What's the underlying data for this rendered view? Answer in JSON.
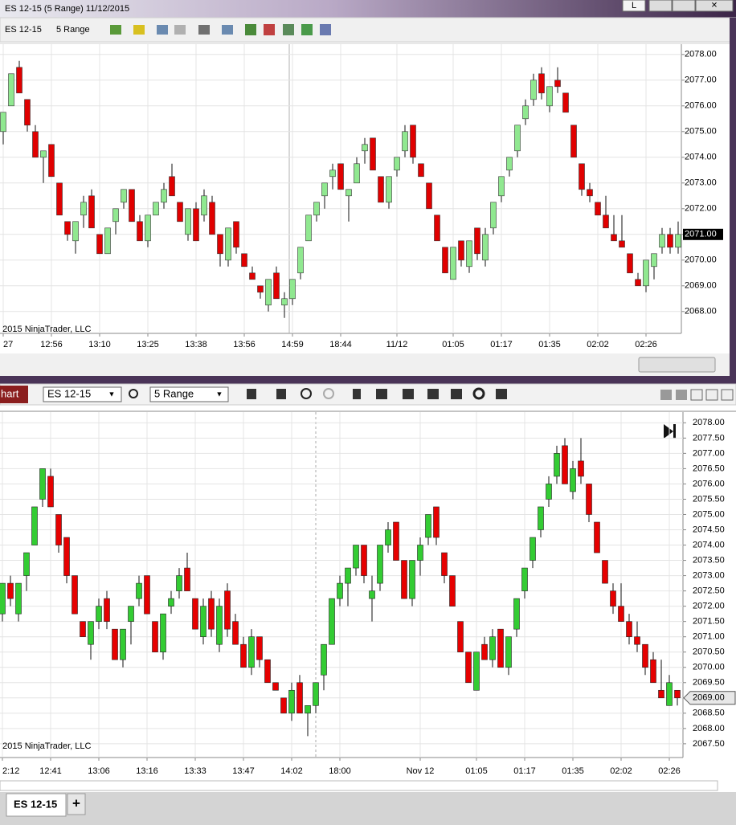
{
  "window": {
    "title": "ES 12-15 (5 Range)  11/12/2015",
    "button": "L"
  },
  "toolbar": {
    "instrument": "ES 12-15",
    "period": "5 Range"
  },
  "bottom_toolbar": {
    "tab": "hart",
    "instrument": "ES 12-15",
    "period": "5 Range"
  },
  "tabs": {
    "active": "ES 12-15",
    "add": "+"
  },
  "chart_data": [
    {
      "type": "candlestick",
      "watermark": "© 2015 NinjaTrader, LLC",
      "up_color": "#90e890",
      "down_color": "#e00000",
      "grid": true,
      "open": [
        2075,
        2076,
        2077.5,
        2076.25,
        2075,
        2074,
        2074.5,
        2073,
        2071.5,
        2070.75,
        2071.75,
        2072.5,
        2071,
        2070.25,
        2071.5,
        2072.25,
        2072.75,
        2071.5,
        2070.75,
        2071.75,
        2072.25,
        2073.25,
        2072.25,
        2071,
        2072,
        2071.75,
        2072.25,
        2071,
        2070,
        2071.5,
        2070.25,
        2069.5,
        2069,
        2068.25,
        2069.5,
        2068.25,
        2068.5,
        2069.5,
        2070.75,
        2071.75,
        2072.5,
        2073.25,
        2073.75,
        2072.5,
        2073,
        2074.25,
        2074.75,
        2073.25,
        2072.25,
        2073.5,
        2074.25,
        2075.25,
        2073.75,
        2073,
        2071.75,
        2070.5,
        2069.25,
        2070.75,
        2069.75,
        2071.25,
        2070,
        2071.25,
        2072.5,
        2073.5,
        2074.25,
        2075.5,
        2076.25,
        2077.25,
        2076,
        2077,
        2076.5,
        2075.25,
        2073.75,
        2072.75,
        2072.25,
        2071.75,
        2071,
        2070.75,
        2070.25,
        2069.25,
        2069,
        2069.75,
        2070.5,
        2071,
        2070.5
      ],
      "high": [
        2075.75,
        2077.25,
        2077.75,
        2076.25,
        2075.25,
        2074.25,
        2074.5,
        2073,
        2071.5,
        2071.5,
        2072.5,
        2072.75,
        2071,
        2071.25,
        2072,
        2072.75,
        2072.75,
        2071.75,
        2071.75,
        2072.25,
        2073,
        2073.75,
        2072.25,
        2072,
        2072.25,
        2072.75,
        2072.5,
        2071,
        2071.25,
        2071.5,
        2070.25,
        2069.75,
        2069,
        2069.25,
        2069.75,
        2068.75,
        2069.25,
        2070.5,
        2071.75,
        2072.25,
        2073,
        2073.75,
        2073.75,
        2072.75,
        2074,
        2074.75,
        2074.75,
        2073.25,
        2073.25,
        2074,
        2075.25,
        2075.25,
        2073.75,
        2073,
        2071.75,
        2070.5,
        2070.5,
        2070.75,
        2070.75,
        2071.25,
        2071.25,
        2072.25,
        2073.25,
        2074,
        2075.25,
        2076.25,
        2077.25,
        2077.5,
        2076.75,
        2077.5,
        2076.5,
        2075.25,
        2073.75,
        2073,
        2072.25,
        2072.5,
        2071.75,
        2071.75,
        2070.25,
        2069.5,
        2070,
        2070.25,
        2071.25,
        2071.25,
        2071.5
      ],
      "low": [
        2074.5,
        2076,
        2076.5,
        2075,
        2074,
        2073,
        2073.25,
        2071.75,
        2070.75,
        2070.25,
        2071.25,
        2071.25,
        2070.25,
        2070.25,
        2071,
        2072,
        2071.5,
        2070.75,
        2070.5,
        2071.75,
        2072,
        2072.5,
        2071.5,
        2070.75,
        2070.75,
        2071.5,
        2071,
        2069.75,
        2069.75,
        2070.25,
        2069.75,
        2069.25,
        2068.5,
        2068,
        2068.5,
        2067.75,
        2068.25,
        2069.25,
        2070.75,
        2071.5,
        2072,
        2072.75,
        2072.75,
        2071.5,
        2073,
        2073.75,
        2073.5,
        2072.25,
        2072,
        2073.25,
        2074,
        2073.75,
        2073.25,
        2072,
        2070.75,
        2069.5,
        2069.25,
        2069.75,
        2069.5,
        2070,
        2069.75,
        2071,
        2072.25,
        2073.25,
        2074,
        2075.25,
        2076,
        2076.25,
        2075.75,
        2076.5,
        2075.75,
        2074,
        2072.5,
        2072.25,
        2071.75,
        2071.25,
        2070.75,
        2070.5,
        2069.5,
        2069,
        2068.75,
        2069.25,
        2070.25,
        2070.25,
        2070.25
      ],
      "close": [
        2075.75,
        2077.25,
        2076.5,
        2075.25,
        2074,
        2074.25,
        2073.25,
        2071.75,
        2071,
        2071.5,
        2072.25,
        2071.25,
        2070.25,
        2071.25,
        2072,
        2072.75,
        2071.5,
        2070.75,
        2071.75,
        2072.25,
        2072.75,
        2072.5,
        2071.5,
        2072,
        2070.75,
        2072.5,
        2071,
        2070.25,
        2071.25,
        2070.5,
        2069.75,
        2069.25,
        2068.75,
        2069.25,
        2068.5,
        2068.5,
        2069.25,
        2070.5,
        2071.75,
        2072.25,
        2073,
        2073.5,
        2072.75,
        2072.75,
        2073.75,
        2074.5,
        2073.5,
        2072.25,
        2073.25,
        2074,
        2075,
        2074,
        2073.25,
        2072,
        2070.75,
        2069.5,
        2070.5,
        2070,
        2070.75,
        2070.25,
        2071,
        2072.25,
        2073.25,
        2074,
        2075.25,
        2076,
        2077,
        2076.5,
        2076.75,
        2076.75,
        2075.75,
        2074,
        2072.75,
        2072.5,
        2071.75,
        2071.25,
        2070.75,
        2070.5,
        2069.5,
        2069,
        2070,
        2070.25,
        2071,
        2070.5,
        2071
      ],
      "x_labels": [
        {
          "index": 0,
          "label": "27"
        },
        {
          "index": 6,
          "label": "12:56"
        },
        {
          "index": 12,
          "label": "13:10"
        },
        {
          "index": 18,
          "label": "13:25"
        },
        {
          "index": 24,
          "label": "13:38"
        },
        {
          "index": 30,
          "label": "13:56"
        },
        {
          "index": 36,
          "label": "14:59"
        },
        {
          "index": 42,
          "label": "18:44"
        },
        {
          "index": 49,
          "label": "11/12"
        },
        {
          "index": 56,
          "label": "01:05"
        },
        {
          "index": 62,
          "label": "01:17"
        },
        {
          "index": 68,
          "label": "01:35"
        },
        {
          "index": 74,
          "label": "02:02"
        },
        {
          "index": 80,
          "label": "02:26"
        }
      ],
      "ylim": [
        2067.15,
        2078.4
      ],
      "yticks": [
        {
          "value": 2068,
          "label": "2068.00"
        },
        {
          "value": 2069,
          "label": "2069.00"
        },
        {
          "value": 2070,
          "label": "2070.00"
        },
        {
          "value": 2071,
          "label": "2071.00"
        },
        {
          "value": 2072,
          "label": "2072.00"
        },
        {
          "value": 2073,
          "label": "2073.00"
        },
        {
          "value": 2074,
          "label": "2074.00"
        },
        {
          "value": 2075,
          "label": "2075.00"
        },
        {
          "value": 2076,
          "label": "2076.00"
        },
        {
          "value": 2077,
          "label": "2077.00"
        },
        {
          "value": 2078,
          "label": "2078.00"
        }
      ],
      "last_price": {
        "value": 2071,
        "label": "2071.00"
      }
    },
    {
      "type": "candlestick",
      "watermark": "© 2015 NinjaTrader, LLC",
      "up_color": "#33cc33",
      "down_color": "#e60000",
      "grid": true,
      "open": [
        2071.75,
        2072.75,
        2071.75,
        2073,
        2074,
        2075.5,
        2076.25,
        2075,
        2074.25,
        2073,
        2071.5,
        2070.75,
        2071.5,
        2072.25,
        2071.25,
        2070.25,
        2071.5,
        2072.25,
        2073,
        2071.5,
        2070.5,
        2072,
        2072.5,
        2073.25,
        2072.25,
        2071,
        2072.25,
        2070.75,
        2072.5,
        2071.5,
        2070.75,
        2070,
        2071,
        2070.25,
        2069.5,
        2069,
        2068.5,
        2069.5,
        2068.5,
        2068.75,
        2069.75,
        2070.75,
        2072.25,
        2072.75,
        2073.25,
        2074,
        2072.25,
        2072.75,
        2074,
        2074.75,
        2073.5,
        2072.25,
        2073.5,
        2074.25,
        2075.25,
        2073.75,
        2073,
        2071.5,
        2070.5,
        2069.25,
        2070.75,
        2070.25,
        2071.25,
        2070,
        2071.25,
        2072.5,
        2073.5,
        2074.5,
        2075.5,
        2076.25,
        2077.25,
        2075.75,
        2076.75,
        2076,
        2074.75,
        2073.5,
        2072.5,
        2072,
        2071.5,
        2071,
        2070.75,
        2070.25,
        2069.25,
        2068.75,
        2069.25
      ],
      "high": [
        2072.75,
        2073,
        2072.75,
        2073.75,
        2075.25,
        2076.5,
        2076.5,
        2075,
        2074.25,
        2073,
        2071.5,
        2071.5,
        2072.25,
        2072.5,
        2071.25,
        2071.25,
        2072,
        2073,
        2073,
        2071.5,
        2071.75,
        2072.5,
        2073.25,
        2073.75,
        2072.25,
        2072.25,
        2072.5,
        2072.25,
        2072.75,
        2071.75,
        2071,
        2071.25,
        2071,
        2070.25,
        2069.5,
        2069,
        2069.5,
        2069.75,
        2068.75,
        2069.5,
        2070.75,
        2072.25,
        2073,
        2073.25,
        2074,
        2074,
        2073,
        2074,
        2074.75,
        2074.75,
        2073.5,
        2073.5,
        2074.25,
        2075,
        2075.25,
        2073.75,
        2073,
        2071.5,
        2070.5,
        2070.5,
        2071,
        2071.25,
        2071.25,
        2071,
        2072.25,
        2073.25,
        2074.25,
        2075.25,
        2076.25,
        2077.25,
        2077.5,
        2076.75,
        2077.5,
        2076,
        2074.75,
        2073.5,
        2072.75,
        2072.75,
        2071.75,
        2071.5,
        2070.75,
        2070.5,
        2070.25,
        2069.75,
        2069.25
      ],
      "low": [
        2071.5,
        2072,
        2071.5,
        2072.5,
        2074,
        2075.25,
        2075.25,
        2073.75,
        2072.75,
        2071.75,
        2071,
        2070.25,
        2071.25,
        2071.25,
        2070.25,
        2070,
        2070.75,
        2072,
        2071.75,
        2070.5,
        2070.25,
        2071.75,
        2072.25,
        2072.5,
        2071.25,
        2070.75,
        2071,
        2070.5,
        2071,
        2070.75,
        2070,
        2069.75,
        2070,
        2069.5,
        2069.25,
        2068.5,
        2068.25,
        2068.5,
        2067.75,
        2068.5,
        2069.25,
        2070.75,
        2072,
        2072,
        2073,
        2072.75,
        2071.5,
        2072.5,
        2073.75,
        2073.5,
        2072.25,
        2072,
        2073,
        2074,
        2074,
        2072.75,
        2072,
        2070.5,
        2069.5,
        2069.25,
        2070.25,
        2070,
        2070,
        2069.75,
        2071,
        2072.25,
        2073.25,
        2074.25,
        2075.25,
        2076,
        2076,
        2075.5,
        2076,
        2074.75,
        2073.75,
        2072.75,
        2071.75,
        2071.5,
        2070.75,
        2070.5,
        2069.75,
        2069.5,
        2069,
        2068.75,
        2068.75
      ],
      "close": [
        2072.75,
        2072.25,
        2072.75,
        2073.75,
        2075.25,
        2076.5,
        2075.25,
        2074,
        2073,
        2071.75,
        2071,
        2071.5,
        2072,
        2071.5,
        2070.25,
        2071.25,
        2072,
        2072.75,
        2071.75,
        2070.5,
        2071.75,
        2072.25,
        2073,
        2072.5,
        2071.25,
        2072,
        2071.25,
        2072,
        2071.25,
        2070.75,
        2070,
        2071,
        2070.25,
        2069.5,
        2069.25,
        2068.5,
        2069.25,
        2068.5,
        2068.75,
        2069.5,
        2070.75,
        2072.25,
        2072.75,
        2073.25,
        2074,
        2073,
        2072.5,
        2074,
        2074.5,
        2073.5,
        2072.25,
        2073.5,
        2074,
        2075,
        2074.25,
        2073,
        2072,
        2070.5,
        2069.5,
        2070.5,
        2070.25,
        2071,
        2070,
        2071,
        2072.25,
        2073.25,
        2074.25,
        2075.25,
        2076,
        2077,
        2076,
        2076.5,
        2076.25,
        2075,
        2073.75,
        2072.75,
        2072,
        2071.5,
        2071,
        2070.75,
        2070,
        2069.5,
        2069,
        2069.5,
        2069
      ],
      "x_labels": [
        {
          "index": 0,
          "label": "2:12"
        },
        {
          "index": 6,
          "label": "12:41"
        },
        {
          "index": 12,
          "label": "13:06"
        },
        {
          "index": 18,
          "label": "13:16"
        },
        {
          "index": 24,
          "label": "13:33"
        },
        {
          "index": 30,
          "label": "13:47"
        },
        {
          "index": 36,
          "label": "14:02"
        },
        {
          "index": 42,
          "label": "18:00"
        },
        {
          "index": 52,
          "label": "Nov 12"
        },
        {
          "index": 59,
          "label": "01:05"
        },
        {
          "index": 65,
          "label": "01:17"
        },
        {
          "index": 71,
          "label": "01:35"
        },
        {
          "index": 77,
          "label": "02:02"
        },
        {
          "index": 83,
          "label": "02:26"
        }
      ],
      "ylim": [
        2067.05,
        2078.35
      ],
      "yticks": [
        {
          "value": 2067.5,
          "label": "2067.50"
        },
        {
          "value": 2068,
          "label": "2068.00"
        },
        {
          "value": 2068.5,
          "label": "2068.50"
        },
        {
          "value": 2069,
          "label": "2069.00"
        },
        {
          "value": 2069.5,
          "label": "2069.50"
        },
        {
          "value": 2070,
          "label": "2070.00"
        },
        {
          "value": 2070.5,
          "label": "2070.50"
        },
        {
          "value": 2071,
          "label": "2071.00"
        },
        {
          "value": 2071.5,
          "label": "2071.50"
        },
        {
          "value": 2072,
          "label": "2072.00"
        },
        {
          "value": 2072.5,
          "label": "2072.50"
        },
        {
          "value": 2073,
          "label": "2073.00"
        },
        {
          "value": 2073.5,
          "label": "2073.50"
        },
        {
          "value": 2074,
          "label": "2074.00"
        },
        {
          "value": 2074.5,
          "label": "2074.50"
        },
        {
          "value": 2075,
          "label": "2075.00"
        },
        {
          "value": 2075.5,
          "label": "2075.50"
        },
        {
          "value": 2076,
          "label": "2076.00"
        },
        {
          "value": 2076.5,
          "label": "2076.50"
        },
        {
          "value": 2077,
          "label": "2077.00"
        },
        {
          "value": 2077.5,
          "label": "2077.50"
        },
        {
          "value": 2078,
          "label": "2078.00"
        }
      ],
      "last_price": {
        "value": 2069,
        "label": "2069.00"
      }
    }
  ]
}
